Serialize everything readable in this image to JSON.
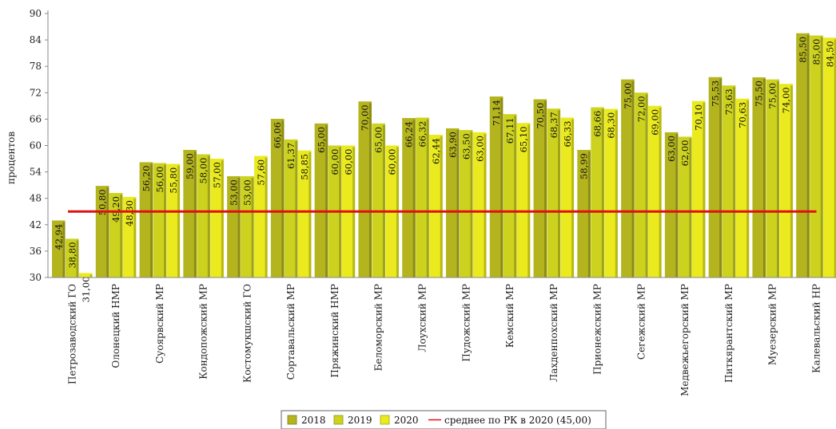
{
  "chart_data": {
    "type": "bar",
    "ylabel": "процентов",
    "ylim": [
      30,
      90
    ],
    "yticks": [
      30,
      36,
      42,
      48,
      54,
      60,
      66,
      72,
      78,
      84,
      90
    ],
    "categories": [
      "Петрозаводский ГО",
      "Олонецкий НМР",
      "Суоярвский МР",
      "Кондопожский МР",
      "Костомукшский ГО",
      "Сортавальский МР",
      "Пряжинский НМР",
      "Беломорский МР",
      "Лоухский МР",
      "Пудожский МР",
      "Кемский МР",
      "Лахденпохский МР",
      "Прионежский МР",
      "Сегежский МР",
      "Медвежьегорский МР",
      "Питкярантский МР",
      "Муезерский МР",
      "Калевальский НР"
    ],
    "series": [
      {
        "name": "2018",
        "color": "#b4b41e",
        "values": [
          42.94,
          50.8,
          56.2,
          59.0,
          53.0,
          66.06,
          65.0,
          70.0,
          66.24,
          63.9,
          71.14,
          70.5,
          58.99,
          75.0,
          63.0,
          75.53,
          75.5,
          85.5
        ],
        "labels": [
          "42,94",
          "50,80",
          "56,20",
          "59,00",
          "53,00",
          "66,06",
          "65,00",
          "70,00",
          "66,24",
          "63,90",
          "71,14",
          "70,50",
          "58,99",
          "75,00",
          "63,00",
          "75,53",
          "75,50",
          "85,50"
        ]
      },
      {
        "name": "2019",
        "color": "#cdd21e",
        "values": [
          38.8,
          49.2,
          56.0,
          58.0,
          53.0,
          61.37,
          60.0,
          65.0,
          66.32,
          63.5,
          67.11,
          68.37,
          68.66,
          72.0,
          62.0,
          73.63,
          75.0,
          85.0
        ],
        "labels": [
          "38,80",
          "49,20",
          "56,00",
          "58,00",
          "53,00",
          "61,37",
          "60,00",
          "65,00",
          "66,32",
          "63,50",
          "67,11",
          "68,37",
          "68,66",
          "72,00",
          "62,00",
          "73,63",
          "75,00",
          "85,00"
        ]
      },
      {
        "name": "2020",
        "color": "#eaea1e",
        "values": [
          31.0,
          48.3,
          55.8,
          57.0,
          57.6,
          58.85,
          60.0,
          60.0,
          62.44,
          63.0,
          65.1,
          66.33,
          68.3,
          69.0,
          70.1,
          70.63,
          74.0,
          84.5
        ],
        "labels": [
          "31,00",
          "48,30",
          "55,80",
          "57,00",
          "57,60",
          "58,85",
          "60,00",
          "60,00",
          "62,44",
          "63,00",
          "65,10",
          "66,33",
          "68,30",
          "69,00",
          "70,10",
          "70,63",
          "74,00",
          "84,50"
        ]
      }
    ],
    "reference_line": {
      "name": "среднее по РК в 2020 (45,00)",
      "value": 45.0,
      "color": "#e01010"
    },
    "legend_position": "bottom",
    "grid": false
  }
}
